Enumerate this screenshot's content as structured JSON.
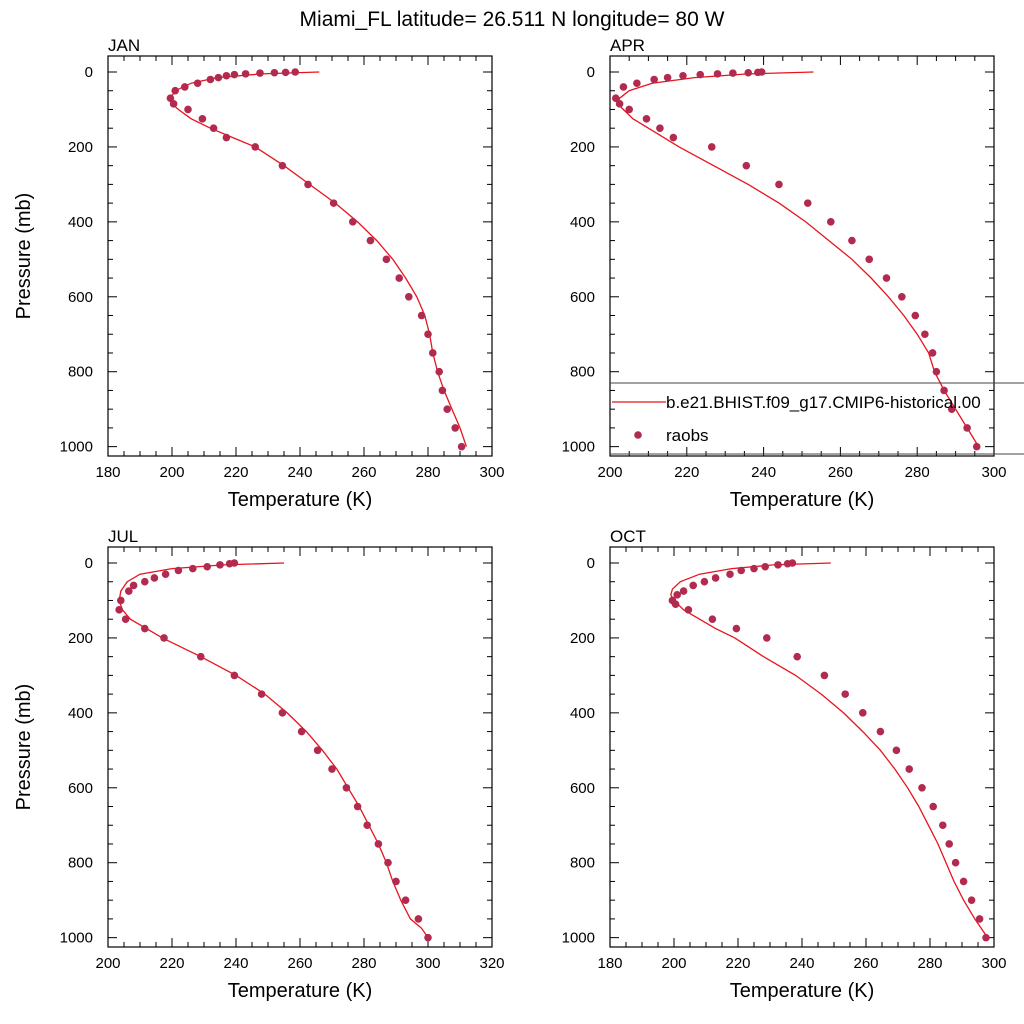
{
  "title": "Miami_FL  latitude= 26.511 N longitude= 80 W",
  "legend": {
    "line_label": "b.e21.BHIST.f09_g17.CMIP6-historical.00",
    "marker_label": "raobs",
    "line_color": "#e8141c",
    "marker_color": "#b22a4f"
  },
  "chart_data": [
    {
      "type": "line",
      "panel": "JAN",
      "xlabel": "Temperature (K)",
      "ylabel": "Pressure (mb)",
      "xlim": [
        180,
        300
      ],
      "ylim": [
        1025,
        0
      ],
      "xticks": [
        180,
        200,
        220,
        240,
        260,
        280,
        300
      ],
      "yticks": [
        0,
        200,
        400,
        600,
        800,
        1000
      ],
      "model": {
        "temperature": [
          246,
          228,
          214,
          206,
          201,
          199.5,
          200,
          202,
          206,
          212,
          219,
          226,
          235,
          243,
          251,
          258,
          264,
          269,
          273,
          276.5,
          279,
          280.5,
          281.5,
          283,
          285,
          287.5,
          290,
          292
        ],
        "pressure": [
          0,
          5,
          15,
          30,
          50,
          70,
          85,
          100,
          125,
          150,
          175,
          200,
          250,
          300,
          350,
          400,
          450,
          500,
          550,
          600,
          650,
          700,
          750,
          800,
          850,
          900,
          950,
          1000
        ]
      },
      "raobs": {
        "temperature": [
          238.5,
          235.5,
          232,
          227.5,
          223,
          219.5,
          217,
          214.5,
          212,
          208,
          204,
          201,
          199.5,
          200.5,
          205,
          209.5,
          213,
          217,
          226,
          234.5,
          242.5,
          250.5,
          256.5,
          262,
          267,
          271,
          274,
          278,
          280,
          281.5,
          283.5,
          284.5,
          286,
          288.5,
          290.5
        ],
        "pressure": [
          0,
          1,
          2,
          3,
          5,
          7,
          10,
          15,
          20,
          30,
          40,
          50,
          70,
          85,
          100,
          125,
          150,
          175,
          200,
          250,
          300,
          350,
          400,
          450,
          500,
          550,
          600,
          650,
          700,
          750,
          800,
          850,
          900,
          950,
          1000
        ]
      }
    },
    {
      "type": "line",
      "panel": "APR",
      "xlabel": "Temperature (K)",
      "ylabel": "",
      "xlim": [
        200,
        300
      ],
      "ylim": [
        1025,
        0
      ],
      "xticks": [
        200,
        220,
        240,
        260,
        280,
        300
      ],
      "yticks": [
        0,
        200,
        400,
        600,
        800,
        1000
      ],
      "model": {
        "temperature": [
          253,
          236,
          222,
          211,
          205,
          202.5,
          202,
          203.5,
          206,
          210,
          214,
          218,
          227,
          236,
          244,
          251,
          257,
          263,
          268,
          272.5,
          276.5,
          280,
          283,
          284.5,
          287,
          290,
          293,
          296
        ],
        "pressure": [
          0,
          5,
          15,
          30,
          50,
          70,
          85,
          100,
          125,
          150,
          175,
          200,
          250,
          300,
          350,
          400,
          450,
          500,
          550,
          600,
          650,
          700,
          750,
          800,
          850,
          900,
          950,
          1000
        ]
      },
      "raobs": {
        "temperature": [
          239.5,
          238.5,
          236,
          232,
          228,
          223.5,
          219,
          215,
          211.5,
          207,
          203.5,
          201.5,
          202.5,
          205,
          209.5,
          213,
          216.5,
          226.5,
          235.5,
          244,
          251.5,
          257.5,
          263,
          267.5,
          272,
          276,
          279.5,
          282,
          284,
          285,
          287,
          289,
          293,
          295.5
        ],
        "pressure": [
          0,
          1,
          2,
          3,
          5,
          7,
          10,
          15,
          20,
          30,
          40,
          70,
          85,
          100,
          125,
          150,
          175,
          200,
          250,
          300,
          350,
          400,
          450,
          500,
          550,
          600,
          650,
          700,
          750,
          800,
          850,
          900,
          950,
          1000
        ]
      }
    },
    {
      "type": "line",
      "panel": "JUL",
      "xlabel": "Temperature (K)",
      "ylabel": "Pressure (mb)",
      "xlim": [
        200,
        320
      ],
      "ylim": [
        1025,
        0
      ],
      "xticks": [
        200,
        220,
        240,
        260,
        280,
        300,
        320
      ],
      "yticks": [
        0,
        200,
        400,
        600,
        800,
        1000
      ],
      "model": {
        "temperature": [
          255,
          236,
          220,
          210,
          206,
          204,
          203.5,
          204.5,
          207,
          212,
          217,
          229,
          240,
          249,
          256,
          262,
          267,
          271.5,
          275,
          278.5,
          281.5,
          284.5,
          287,
          289,
          291.5,
          294.5,
          298,
          300
        ],
        "pressure": [
          0,
          5,
          15,
          30,
          50,
          75,
          100,
          125,
          150,
          175,
          200,
          250,
          300,
          350,
          400,
          450,
          500,
          550,
          600,
          650,
          700,
          750,
          800,
          850,
          900,
          950,
          975,
          1000
        ]
      },
      "raobs": {
        "temperature": [
          239.5,
          238,
          235,
          231,
          226.5,
          222,
          218,
          214.5,
          211.5,
          208,
          206.5,
          204,
          203.5,
          205.5,
          211.5,
          217.5,
          229,
          239.5,
          248,
          254.5,
          260.5,
          265.5,
          270,
          274.5,
          278,
          281,
          284.5,
          287.5,
          290,
          293,
          297,
          300
        ],
        "pressure": [
          0,
          2,
          5,
          10,
          15,
          20,
          30,
          40,
          50,
          60,
          75,
          100,
          125,
          150,
          175,
          200,
          250,
          300,
          350,
          400,
          450,
          500,
          550,
          600,
          650,
          700,
          750,
          800,
          850,
          900,
          950,
          1000
        ]
      }
    },
    {
      "type": "line",
      "panel": "OCT",
      "xlabel": "Temperature (K)",
      "ylabel": "",
      "xlim": [
        180,
        300
      ],
      "ylim": [
        1025,
        0
      ],
      "xticks": [
        180,
        200,
        220,
        240,
        260,
        280,
        300
      ],
      "yticks": [
        0,
        200,
        400,
        600,
        800,
        1000
      ],
      "model": {
        "temperature": [
          249,
          231,
          218,
          208,
          202,
          199.5,
          199,
          200,
          203,
          208,
          213,
          219,
          228,
          238,
          246,
          253,
          259,
          264.5,
          269,
          273,
          276.5,
          279.5,
          282.5,
          285,
          287.5,
          290.5,
          294,
          298
        ],
        "pressure": [
          0,
          5,
          15,
          30,
          50,
          70,
          85,
          100,
          125,
          150,
          175,
          200,
          250,
          300,
          350,
          400,
          450,
          500,
          550,
          600,
          650,
          700,
          750,
          800,
          850,
          900,
          950,
          1000
        ]
      },
      "raobs": {
        "temperature": [
          237,
          235.5,
          232.5,
          228.5,
          225,
          221,
          217.5,
          213,
          209.5,
          206,
          203,
          201,
          199.5,
          200.5,
          204.5,
          212,
          219.5,
          229,
          238.5,
          247,
          253.5,
          259,
          264.5,
          269.5,
          273.5,
          277.5,
          281,
          284,
          286,
          288,
          290.5,
          293,
          295.5,
          297.5
        ],
        "pressure": [
          0,
          2,
          5,
          10,
          15,
          20,
          30,
          40,
          50,
          60,
          75,
          85,
          100,
          110,
          125,
          150,
          175,
          200,
          250,
          300,
          350,
          400,
          450,
          500,
          550,
          600,
          650,
          700,
          750,
          800,
          850,
          900,
          950,
          1000
        ]
      }
    }
  ]
}
